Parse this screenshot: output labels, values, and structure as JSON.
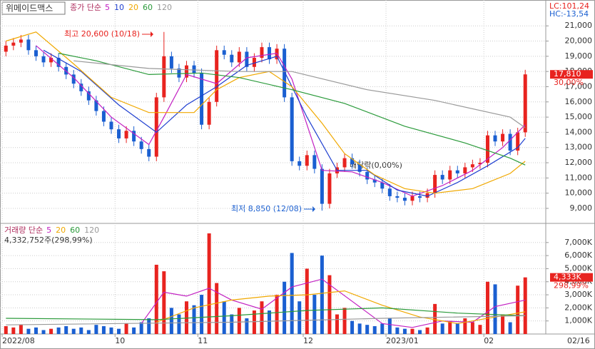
{
  "header": {
    "title": "위메이드맥스",
    "lc": "LC:101,24",
    "hc": "HC:-13,54",
    "date_label": "02/16"
  },
  "chart_data": [
    {
      "type": "candlestick",
      "legend_label": "종가 단순",
      "up_color": "#e8231f",
      "down_color": "#1a5fd1",
      "open": [
        19300,
        19700,
        19900,
        20100,
        19400,
        19000,
        18600,
        18900,
        18300,
        17800,
        17200,
        16700,
        16100,
        15400,
        14700,
        14200,
        13600,
        14100,
        13400,
        12900,
        12400,
        16300,
        19000,
        18200,
        17600,
        18400,
        17900,
        14500,
        16000,
        19400,
        19100,
        18600,
        19300,
        18300,
        18900,
        19600,
        18800,
        19500,
        16300,
        12100,
        11800,
        12500,
        11600,
        9300,
        11300,
        11700,
        12300,
        11900,
        11400,
        10900,
        10700,
        10300,
        9800,
        9700,
        9500,
        9800,
        9700,
        10000,
        11200,
        10900,
        11500,
        11300,
        11700,
        11900,
        12000,
        13800,
        13400,
        13900,
        12800,
        14000
      ],
      "high": [
        20000,
        20200,
        20400,
        20400,
        19700,
        19300,
        19200,
        19200,
        18600,
        18100,
        17500,
        17000,
        16400,
        15700,
        15000,
        14500,
        14400,
        14400,
        13700,
        13200,
        16600,
        20600,
        19300,
        18500,
        18700,
        18700,
        18200,
        16300,
        19700,
        19700,
        19400,
        19600,
        19600,
        19200,
        19900,
        19900,
        19800,
        19800,
        16600,
        12400,
        12800,
        12800,
        11900,
        11600,
        12000,
        12600,
        12600,
        12200,
        11700,
        11200,
        11000,
        10600,
        10100,
        10000,
        10100,
        10100,
        10300,
        11500,
        11500,
        11800,
        11800,
        12000,
        12200,
        12300,
        14100,
        14100,
        14200,
        14200,
        14300,
        18110
      ],
      "low": [
        19000,
        19400,
        19600,
        19100,
        18700,
        18300,
        18300,
        18000,
        17500,
        16900,
        16400,
        15800,
        15100,
        14400,
        13900,
        13300,
        13300,
        13100,
        12600,
        12100,
        12100,
        16000,
        17900,
        17300,
        17300,
        17600,
        14200,
        14200,
        15700,
        18800,
        18300,
        18300,
        18000,
        18000,
        18600,
        18500,
        18500,
        16000,
        11800,
        11500,
        11500,
        11300,
        8850,
        9000,
        11000,
        11400,
        11600,
        11100,
        10600,
        10400,
        10000,
        9500,
        9400,
        9200,
        9200,
        9400,
        9400,
        9700,
        10600,
        10600,
        11000,
        11000,
        11400,
        11600,
        11700,
        13100,
        13100,
        12500,
        12500,
        13700
      ],
      "close": [
        19700,
        19900,
        20100,
        19400,
        19000,
        18600,
        18900,
        18300,
        17800,
        17200,
        16700,
        16100,
        15400,
        14700,
        14200,
        13600,
        14100,
        13400,
        12900,
        12400,
        16300,
        19000,
        18200,
        17600,
        18400,
        17900,
        14500,
        16000,
        19400,
        19100,
        18600,
        19300,
        18300,
        18900,
        19600,
        18800,
        19500,
        16300,
        12100,
        11800,
        12500,
        11600,
        9300,
        11300,
        11700,
        12300,
        11900,
        11400,
        10900,
        10700,
        10300,
        9800,
        9700,
        9500,
        9800,
        9700,
        10000,
        11200,
        10900,
        11500,
        11300,
        11700,
        11900,
        12000,
        13800,
        13400,
        13900,
        12800,
        14000,
        17810
      ],
      "series": [
        {
          "name": "5",
          "color": "#c21fc2",
          "x": [
            4,
            9,
            14,
            19,
            21,
            24,
            28,
            32,
            36,
            38,
            42,
            46,
            50,
            54,
            58,
            62,
            66,
            69
          ],
          "values": [
            19700,
            17600,
            15000,
            13200,
            15000,
            17800,
            17200,
            18900,
            19200,
            17500,
            11500,
            11400,
            10700,
            9800,
            10500,
            11500,
            13000,
            14500
          ]
        },
        {
          "name": "10",
          "color": "#1f3fd0",
          "x": [
            5,
            10,
            15,
            20,
            24,
            28,
            32,
            36,
            40,
            44,
            48,
            52,
            56,
            60,
            64,
            68,
            69
          ],
          "values": [
            19400,
            18000,
            15800,
            14000,
            15800,
            17000,
            18400,
            19000,
            15000,
            11500,
            11500,
            10200,
            9800,
            10700,
            11800,
            13000,
            13600
          ]
        },
        {
          "name": "20",
          "color": "#f0a800",
          "x": [
            0,
            4,
            9,
            14,
            19,
            25,
            28,
            31,
            35,
            38,
            42,
            45,
            49,
            53,
            57,
            62,
            67,
            69
          ],
          "values": [
            20000,
            20600,
            18500,
            16300,
            15300,
            15300,
            16800,
            17600,
            18000,
            17000,
            14600,
            12600,
            11200,
            10300,
            10000,
            10300,
            11300,
            12100
          ]
        },
        {
          "name": "60",
          "color": "#2a9a3a",
          "x": [
            7,
            12,
            19,
            26,
            31,
            38,
            45,
            53,
            61,
            67,
            69
          ],
          "values": [
            19200,
            18700,
            17800,
            17900,
            17600,
            16800,
            15900,
            14400,
            13300,
            12300,
            11850
          ]
        },
        {
          "name": "120",
          "color": "#999999",
          "x": [
            9,
            19,
            31,
            38,
            48,
            57,
            67,
            69
          ],
          "values": [
            18700,
            18200,
            18000,
            18000,
            16800,
            16100,
            15000,
            14300
          ]
        }
      ],
      "ylim": [
        8060,
        22700
      ],
      "yticks": [
        {
          "value": 9000,
          "label": "9,000"
        },
        {
          "value": 10000,
          "label": "10,000"
        },
        {
          "value": 11000,
          "label": "11,000"
        },
        {
          "value": 12000,
          "label": "12,000"
        },
        {
          "value": 13000,
          "label": "13,000"
        },
        {
          "value": 14000,
          "label": "14,000"
        },
        {
          "value": 15000,
          "label": "15,000"
        },
        {
          "value": 16000,
          "label": "16,000"
        },
        {
          "value": 17000,
          "label": "17,000"
        },
        {
          "value": 18000,
          "label": "18,000"
        },
        {
          "value": 19000,
          "label": "19,000"
        },
        {
          "value": 20000,
          "label": "20,000"
        },
        {
          "value": 21000,
          "label": "21,000"
        }
      ],
      "last_value_label": "17,810",
      "change_label": "30,00%",
      "annotations": [
        "최고 20,600 (10/18)",
        "최저 8,850 (12/08)",
        "배당락(0,00%)"
      ],
      "grid": true
    },
    {
      "type": "bar",
      "legend_label": "거래량 단순",
      "info_label": "4,332,752주(298,99%)",
      "values": [
        600000,
        500000,
        700000,
        400000,
        500000,
        300000,
        400000,
        500000,
        600000,
        400000,
        500000,
        300000,
        700000,
        600000,
        500000,
        400000,
        800000,
        500000,
        900000,
        1200000,
        5300000,
        4800000,
        2000000,
        1500000,
        2500000,
        2200000,
        3000000,
        7700000,
        3900000,
        2500000,
        1500000,
        2000000,
        1200000,
        1800000,
        2500000,
        1800000,
        3000000,
        4000000,
        6200000,
        2500000,
        5000000,
        3000000,
        6000000,
        4500000,
        1500000,
        2000000,
        1000000,
        800000,
        700000,
        600000,
        800000,
        1200000,
        500000,
        400000,
        400000,
        300000,
        500000,
        2300000,
        800000,
        1000000,
        800000,
        1200000,
        900000,
        700000,
        4000000,
        3800000,
        1500000,
        900000,
        3700000,
        4332752
      ],
      "series": [
        {
          "name": "5",
          "color": "#c21fc2",
          "x": [
            18,
            21,
            24,
            27,
            30,
            34,
            38,
            42,
            46,
            50,
            54,
            58,
            62,
            65,
            69
          ],
          "values": [
            800000,
            3200000,
            2900000,
            3500000,
            2600000,
            1900000,
            3600000,
            4200000,
            2500000,
            800000,
            500000,
            1000000,
            900000,
            2100000,
            2600000
          ]
        },
        {
          "name": "20",
          "color": "#f0a800",
          "x": [
            20,
            25,
            30,
            35,
            40,
            45,
            50,
            55,
            60,
            65,
            69
          ],
          "values": [
            900000,
            2000000,
            2600000,
            2900000,
            3000000,
            3300000,
            2200000,
            1300000,
            800000,
            1300000,
            1700000
          ]
        },
        {
          "name": "60",
          "color": "#2a9a3a",
          "x": [
            0,
            20,
            30,
            40,
            50,
            60,
            69
          ],
          "values": [
            1200000,
            1100000,
            1400000,
            1800000,
            2000000,
            1600000,
            1400000
          ]
        },
        {
          "name": "120",
          "color": "#999999",
          "x": [
            0,
            30,
            50,
            69
          ],
          "values": [
            700000,
            900000,
            1200000,
            1400000
          ]
        }
      ],
      "ylim": [
        0,
        8300000
      ],
      "yticks": [
        {
          "value": 1000000,
          "label": "1,000K"
        },
        {
          "value": 2000000,
          "label": "2,000K"
        },
        {
          "value": 3000000,
          "label": "3,000K"
        },
        {
          "value": 4000000,
          "label": "4,000K"
        },
        {
          "value": 5000000,
          "label": "5,000K"
        },
        {
          "value": 6000000,
          "label": "6,000K"
        },
        {
          "value": 7000000,
          "label": "7,000K"
        }
      ],
      "last_value_label": "4,333K",
      "change_label": "298,99%",
      "xticks": [
        {
          "value": 0,
          "label": "2022/08"
        },
        {
          "value": 15,
          "label": "10"
        },
        {
          "value": 26,
          "label": "11"
        },
        {
          "value": 40,
          "label": "12"
        },
        {
          "value": 51,
          "label": "2023/01"
        },
        {
          "value": 64,
          "label": "02"
        }
      ],
      "grid": true
    }
  ]
}
